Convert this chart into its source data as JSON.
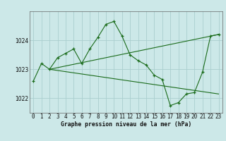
{
  "title": "Graphe pression niveau de la mer (hPa)",
  "bg_color": "#cce8e8",
  "plot_bg_color": "#cce8e8",
  "grid_color": "#aacece",
  "line_color": "#1a6b1a",
  "x_ticks": [
    0,
    1,
    2,
    3,
    4,
    5,
    6,
    7,
    8,
    9,
    10,
    11,
    12,
    13,
    14,
    15,
    16,
    17,
    18,
    19,
    20,
    21,
    22,
    23
  ],
  "y_ticks": [
    1022,
    1023,
    1024
  ],
  "ylim": [
    1021.5,
    1025.0
  ],
  "xlim": [
    -0.5,
    23.5
  ],
  "line1_x": [
    0,
    1,
    2,
    3,
    4,
    5,
    6,
    7,
    8,
    9,
    10,
    11,
    12,
    13,
    14,
    15,
    16,
    17,
    18,
    19,
    20,
    21,
    22,
    23
  ],
  "line1_y": [
    1022.6,
    1023.2,
    1023.0,
    1023.4,
    1023.55,
    1023.7,
    1023.2,
    1023.7,
    1024.1,
    1024.55,
    1024.65,
    1024.15,
    1023.5,
    1023.3,
    1023.15,
    1022.8,
    1022.65,
    1021.75,
    1021.85,
    1022.15,
    1022.2,
    1022.9,
    1024.15,
    1024.2
  ],
  "line2_x": [
    2,
    23
  ],
  "line2_y": [
    1023.0,
    1024.2
  ],
  "line3_x": [
    2,
    23
  ],
  "line3_y": [
    1023.0,
    1022.15
  ],
  "title_fontsize": 5.8,
  "tick_fontsize": 5.5,
  "xlabel_fontsize": 5.5
}
